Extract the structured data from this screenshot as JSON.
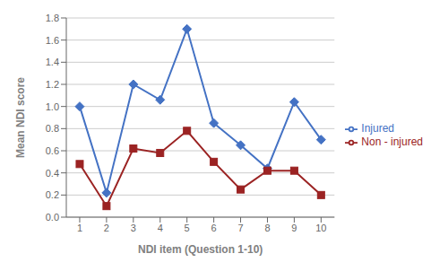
{
  "chart_data": {
    "type": "line",
    "x": [
      1,
      2,
      3,
      4,
      5,
      6,
      7,
      8,
      9,
      10
    ],
    "series": [
      {
        "name": "Injured",
        "color": "#4472C4",
        "marker": "diamond",
        "values": [
          1.0,
          0.22,
          1.2,
          1.06,
          1.7,
          0.85,
          0.65,
          0.44,
          1.04,
          0.7
        ]
      },
      {
        "name": "Non - injured",
        "color": "#9B2323",
        "marker": "square",
        "values": [
          0.48,
          0.1,
          0.62,
          0.58,
          0.78,
          0.5,
          0.25,
          0.42,
          0.42,
          0.2
        ]
      }
    ],
    "xlabel": "NDI item (Question 1-10)",
    "ylabel": "Mean NDI score",
    "xlim": [
      0.5,
      10.5
    ],
    "xticks": [
      1,
      2,
      3,
      4,
      5,
      6,
      7,
      8,
      9,
      10
    ],
    "ylim": [
      0,
      1.8
    ],
    "yticks": [
      {
        "value": 0,
        "label": "0.0"
      },
      0.2,
      0.4,
      0.6,
      0.8,
      {
        "value": 1,
        "label": "1.0"
      },
      1.2,
      1.4,
      1.6,
      1.8
    ],
    "grid": "y",
    "legend": "right"
  }
}
